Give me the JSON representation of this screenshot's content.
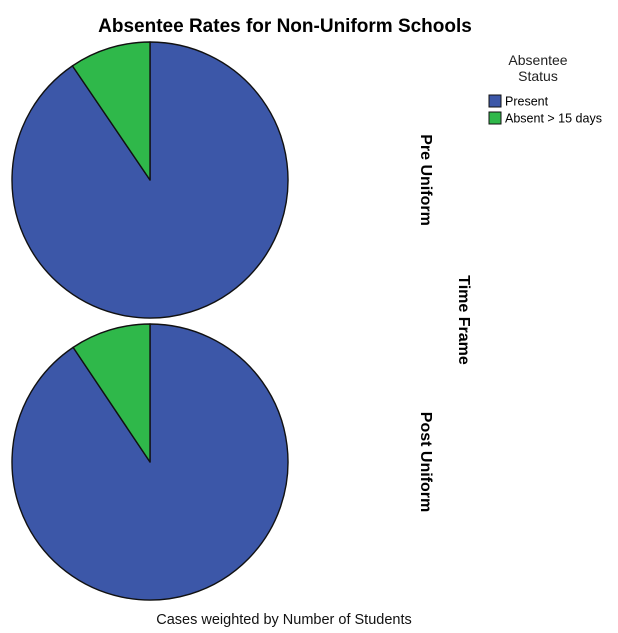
{
  "chart_data": {
    "type": "pie",
    "title": "Absentee Rates for Non-Uniform Schools",
    "footnote": "Cases weighted by Number of Students",
    "facet_label": "Time Frame",
    "legend": {
      "title_line1": "Absentee",
      "title_line2": "Status",
      "placement": "top-right",
      "entries": [
        {
          "name": "Present",
          "color": "#3c57a8"
        },
        {
          "name": "Absent > 15 days",
          "color": "#2fb84a"
        }
      ]
    },
    "categories": [
      "Present",
      "Absent > 15 days"
    ],
    "panels": [
      {
        "label": "Pre Uniform",
        "values": [
          90.5,
          9.5
        ]
      },
      {
        "label": "Post Uniform",
        "values": [
          90.6,
          9.4
        ]
      }
    ]
  }
}
